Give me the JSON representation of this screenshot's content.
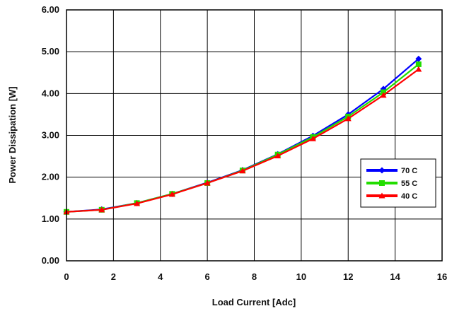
{
  "chart_data": {
    "type": "line",
    "title": "",
    "xlabel": "Load Current [Adc]",
    "ylabel": "Power Dissipation [W]",
    "xlim": [
      0,
      16
    ],
    "ylim": [
      0,
      6
    ],
    "xticks": [
      0,
      2,
      4,
      6,
      8,
      10,
      12,
      14,
      16
    ],
    "yticks": [
      0,
      1,
      2,
      3,
      4,
      5,
      6
    ],
    "xtick_labels": [
      "0",
      "2",
      "4",
      "6",
      "8",
      "10",
      "12",
      "14",
      "16"
    ],
    "ytick_labels": [
      "0.00",
      "1.00",
      "2.00",
      "3.00",
      "4.00",
      "5.00",
      "6.00"
    ],
    "grid": true,
    "legend_position": "right",
    "x": [
      0,
      1.5,
      3,
      4.5,
      6,
      7.5,
      9,
      10.5,
      12,
      13.5,
      15
    ],
    "series": [
      {
        "name": "70 C",
        "color": "#0000ff",
        "marker": "diamond",
        "values": [
          1.17,
          1.23,
          1.38,
          1.6,
          1.87,
          2.17,
          2.55,
          2.99,
          3.5,
          4.11,
          4.83
        ]
      },
      {
        "name": "55 C",
        "color": "#22dd00",
        "marker": "square",
        "values": [
          1.17,
          1.22,
          1.38,
          1.6,
          1.86,
          2.16,
          2.54,
          2.96,
          3.45,
          4.03,
          4.7
        ]
      },
      {
        "name": "40 C",
        "color": "#ff0000",
        "marker": "triangle",
        "values": [
          1.17,
          1.22,
          1.37,
          1.59,
          1.86,
          2.15,
          2.51,
          2.92,
          3.4,
          3.96,
          4.58
        ]
      }
    ]
  }
}
